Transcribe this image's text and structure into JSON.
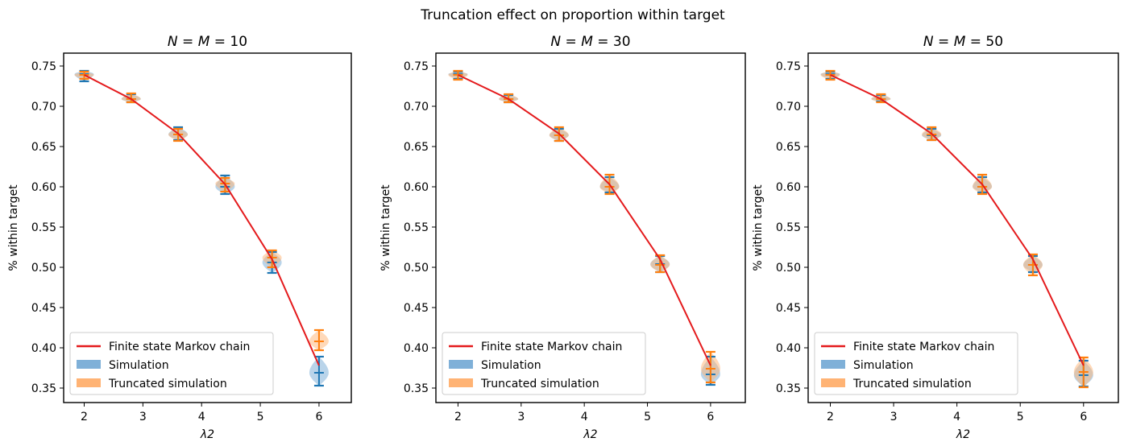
{
  "figure": {
    "suptitle": "Truncation effect on proportion within target"
  },
  "legend": {
    "markov": "Finite state Markov chain",
    "simulation": "Simulation",
    "truncated": "Truncated simulation"
  },
  "colors": {
    "markov": "#e41a1c",
    "simulation": "#1f77b4",
    "simulation_fill": "#7fb0d8",
    "truncated": "#ff7f0e",
    "truncated_fill": "#ffb374",
    "overlap_fill": "#c8b49a"
  },
  "chart_data": [
    {
      "type": "violin",
      "title_prefix": "N = M = ",
      "title_value": "10",
      "xlabel": "λ2",
      "ylabel": "% within target",
      "xlim": [
        1.65,
        6.55
      ],
      "ylim": [
        0.332,
        0.766
      ],
      "xticks": [
        2,
        3,
        4,
        5,
        6
      ],
      "yticks": [
        0.35,
        0.4,
        0.45,
        0.5,
        0.55,
        0.6,
        0.65,
        0.7,
        0.75
      ],
      "ytick_labels": [
        "0.35",
        "0.40",
        "0.45",
        "0.50",
        "0.55",
        "0.60",
        "0.65",
        "0.70",
        "0.75"
      ],
      "legend_position": "lower-left",
      "x": [
        2,
        2.8,
        3.6,
        4.4,
        5.2,
        6
      ],
      "markov": [
        0.739,
        0.709,
        0.666,
        0.603,
        0.51,
        0.378
      ],
      "simulation": {
        "min": [
          0.731,
          0.705,
          0.658,
          0.591,
          0.493,
          0.353
        ],
        "median": [
          0.74,
          0.709,
          0.665,
          0.6,
          0.506,
          0.369
        ],
        "max": [
          0.744,
          0.715,
          0.674,
          0.614,
          0.519,
          0.389
        ]
      },
      "truncated": {
        "min": [
          0.734,
          0.705,
          0.657,
          0.594,
          0.5,
          0.397
        ],
        "median": [
          0.739,
          0.709,
          0.665,
          0.604,
          0.512,
          0.408
        ],
        "max": [
          0.743,
          0.716,
          0.672,
          0.611,
          0.521,
          0.422
        ]
      }
    },
    {
      "type": "violin",
      "title_prefix": "N = M = ",
      "title_value": "30",
      "xlabel": "λ2",
      "ylabel": "% within target",
      "xlim": [
        1.65,
        6.55
      ],
      "ylim": [
        0.332,
        0.766
      ],
      "xticks": [
        2,
        3,
        4,
        5,
        6
      ],
      "yticks": [
        0.35,
        0.4,
        0.45,
        0.5,
        0.55,
        0.6,
        0.65,
        0.7,
        0.75
      ],
      "ytick_labels": [
        "0.35",
        "0.40",
        "0.45",
        "0.50",
        "0.55",
        "0.60",
        "0.65",
        "0.70",
        "0.75"
      ],
      "legend_position": "lower-left",
      "x": [
        2,
        2.8,
        3.6,
        4.4,
        5.2,
        6
      ],
      "markov": [
        0.739,
        0.709,
        0.666,
        0.603,
        0.51,
        0.378
      ],
      "simulation": {
        "min": [
          0.734,
          0.705,
          0.657,
          0.593,
          0.494,
          0.354
        ],
        "median": [
          0.74,
          0.709,
          0.664,
          0.6,
          0.504,
          0.367
        ],
        "max": [
          0.743,
          0.714,
          0.672,
          0.612,
          0.514,
          0.389
        ]
      },
      "truncated": {
        "min": [
          0.733,
          0.705,
          0.657,
          0.591,
          0.494,
          0.357
        ],
        "median": [
          0.739,
          0.709,
          0.664,
          0.6,
          0.503,
          0.374
        ],
        "max": [
          0.744,
          0.715,
          0.674,
          0.615,
          0.515,
          0.395
        ]
      }
    },
    {
      "type": "violin",
      "title_prefix": "N = M = ",
      "title_value": "50",
      "xlabel": "λ2",
      "ylabel": "% within target",
      "xlim": [
        1.65,
        6.55
      ],
      "ylim": [
        0.332,
        0.766
      ],
      "xticks": [
        2,
        3,
        4,
        5,
        6
      ],
      "yticks": [
        0.35,
        0.4,
        0.45,
        0.5,
        0.55,
        0.6,
        0.65,
        0.7,
        0.75
      ],
      "ytick_labels": [
        "0.35",
        "0.40",
        "0.45",
        "0.50",
        "0.55",
        "0.60",
        "0.65",
        "0.70",
        "0.75"
      ],
      "legend_position": "lower-left",
      "x": [
        2,
        2.8,
        3.6,
        4.4,
        5.2,
        6
      ],
      "markov": [
        0.739,
        0.709,
        0.666,
        0.603,
        0.51,
        0.378
      ],
      "simulation": {
        "min": [
          0.734,
          0.706,
          0.658,
          0.593,
          0.494,
          0.352
        ],
        "median": [
          0.74,
          0.709,
          0.664,
          0.6,
          0.503,
          0.366
        ],
        "max": [
          0.743,
          0.714,
          0.672,
          0.612,
          0.514,
          0.384
        ]
      },
      "truncated": {
        "min": [
          0.733,
          0.705,
          0.658,
          0.591,
          0.49,
          0.351
        ],
        "median": [
          0.739,
          0.709,
          0.665,
          0.6,
          0.503,
          0.37
        ],
        "max": [
          0.744,
          0.715,
          0.674,
          0.615,
          0.516,
          0.388
        ]
      }
    }
  ]
}
